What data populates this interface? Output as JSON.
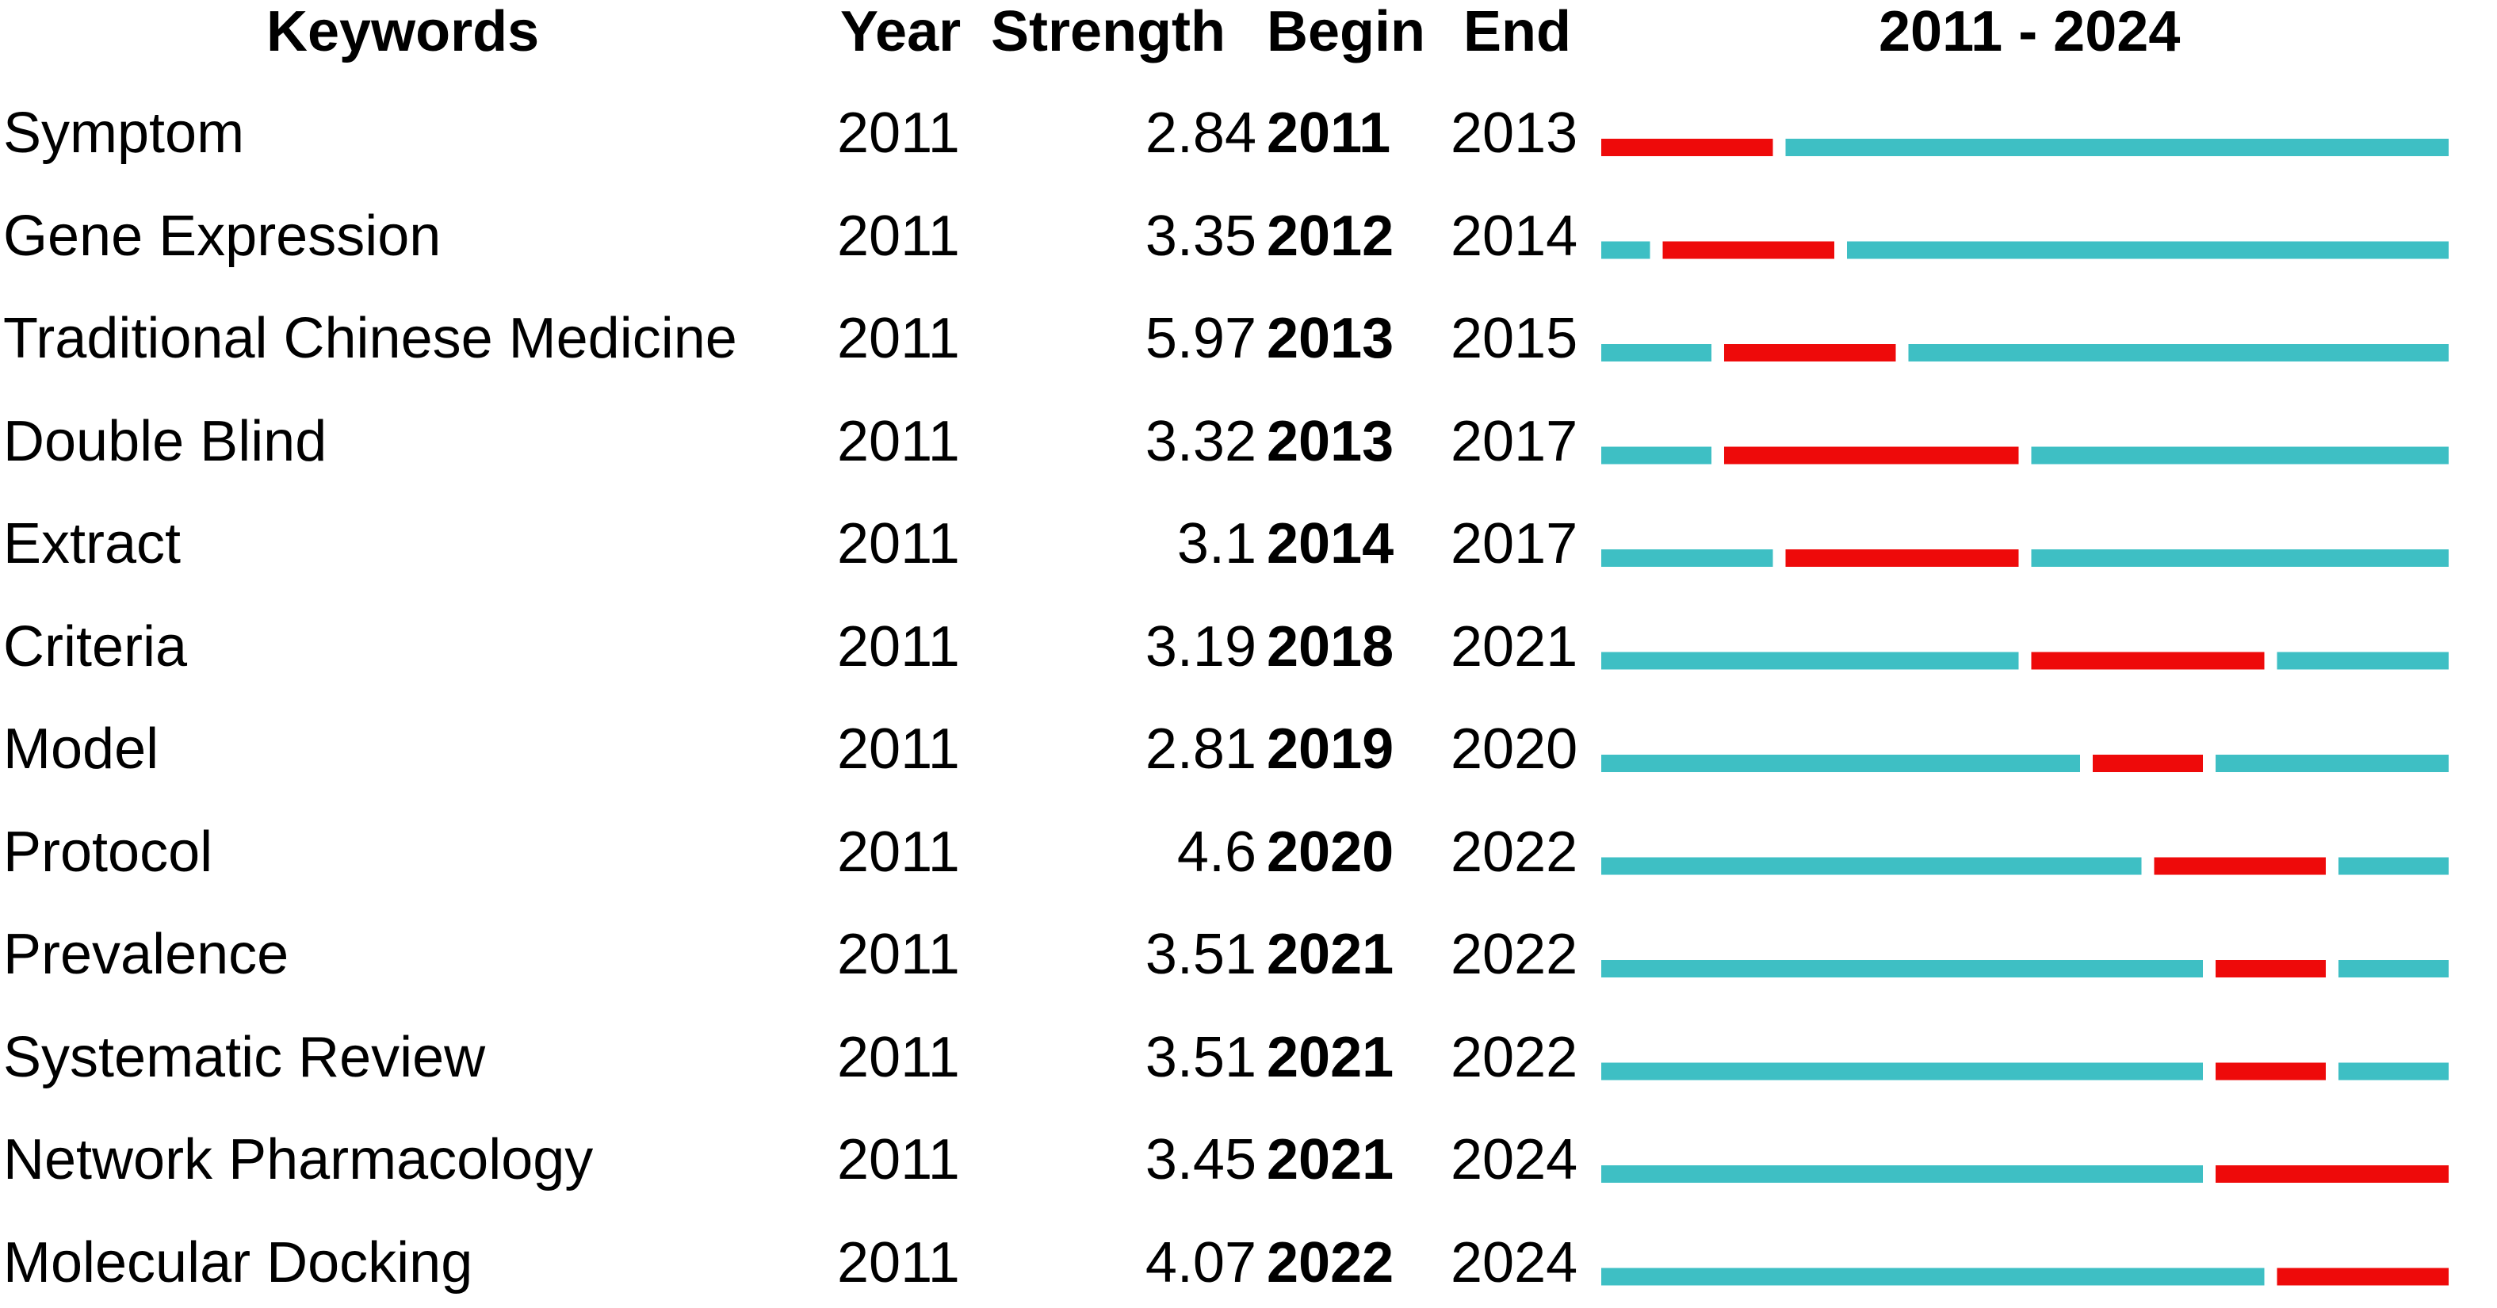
{
  "headers": {
    "keywords": "Keywords",
    "year": "Year",
    "strength": "Strength",
    "begin": "Begin",
    "end": "End",
    "range": "2011 - 2024"
  },
  "colors": {
    "burst": "#ee0a0a",
    "base": "#3ebfc4"
  },
  "chart_data": {
    "type": "table",
    "timeline": {
      "start": 2011,
      "end": 2024
    },
    "rows": [
      {
        "keyword": "Symptom",
        "year": "2011",
        "strength": "2.84",
        "begin": "2011",
        "end": "2013"
      },
      {
        "keyword": "Gene Expression",
        "year": "2011",
        "strength": "3.35",
        "begin": "2012",
        "end": "2014"
      },
      {
        "keyword": "Traditional Chinese Medicine",
        "year": "2011",
        "strength": "5.97",
        "begin": "2013",
        "end": "2015"
      },
      {
        "keyword": "Double Blind",
        "year": "2011",
        "strength": "3.32",
        "begin": "2013",
        "end": "2017"
      },
      {
        "keyword": "Extract",
        "year": "2011",
        "strength": "3.1",
        "begin": "2014",
        "end": "2017"
      },
      {
        "keyword": "Criteria",
        "year": "2011",
        "strength": "3.19",
        "begin": "2018",
        "end": "2021"
      },
      {
        "keyword": "Model",
        "year": "2011",
        "strength": "2.81",
        "begin": "2019",
        "end": "2020"
      },
      {
        "keyword": "Protocol",
        "year": "2011",
        "strength": "4.6",
        "begin": "2020",
        "end": "2022"
      },
      {
        "keyword": "Prevalence",
        "year": "2011",
        "strength": "3.51",
        "begin": "2021",
        "end": "2022"
      },
      {
        "keyword": "Systematic Review",
        "year": "2011",
        "strength": "3.51",
        "begin": "2021",
        "end": "2022"
      },
      {
        "keyword": "Network Pharmacology",
        "year": "2011",
        "strength": "3.45",
        "begin": "2021",
        "end": "2024"
      },
      {
        "keyword": "Molecular Docking",
        "year": "2011",
        "strength": "4.07",
        "begin": "2022",
        "end": "2024"
      }
    ]
  }
}
